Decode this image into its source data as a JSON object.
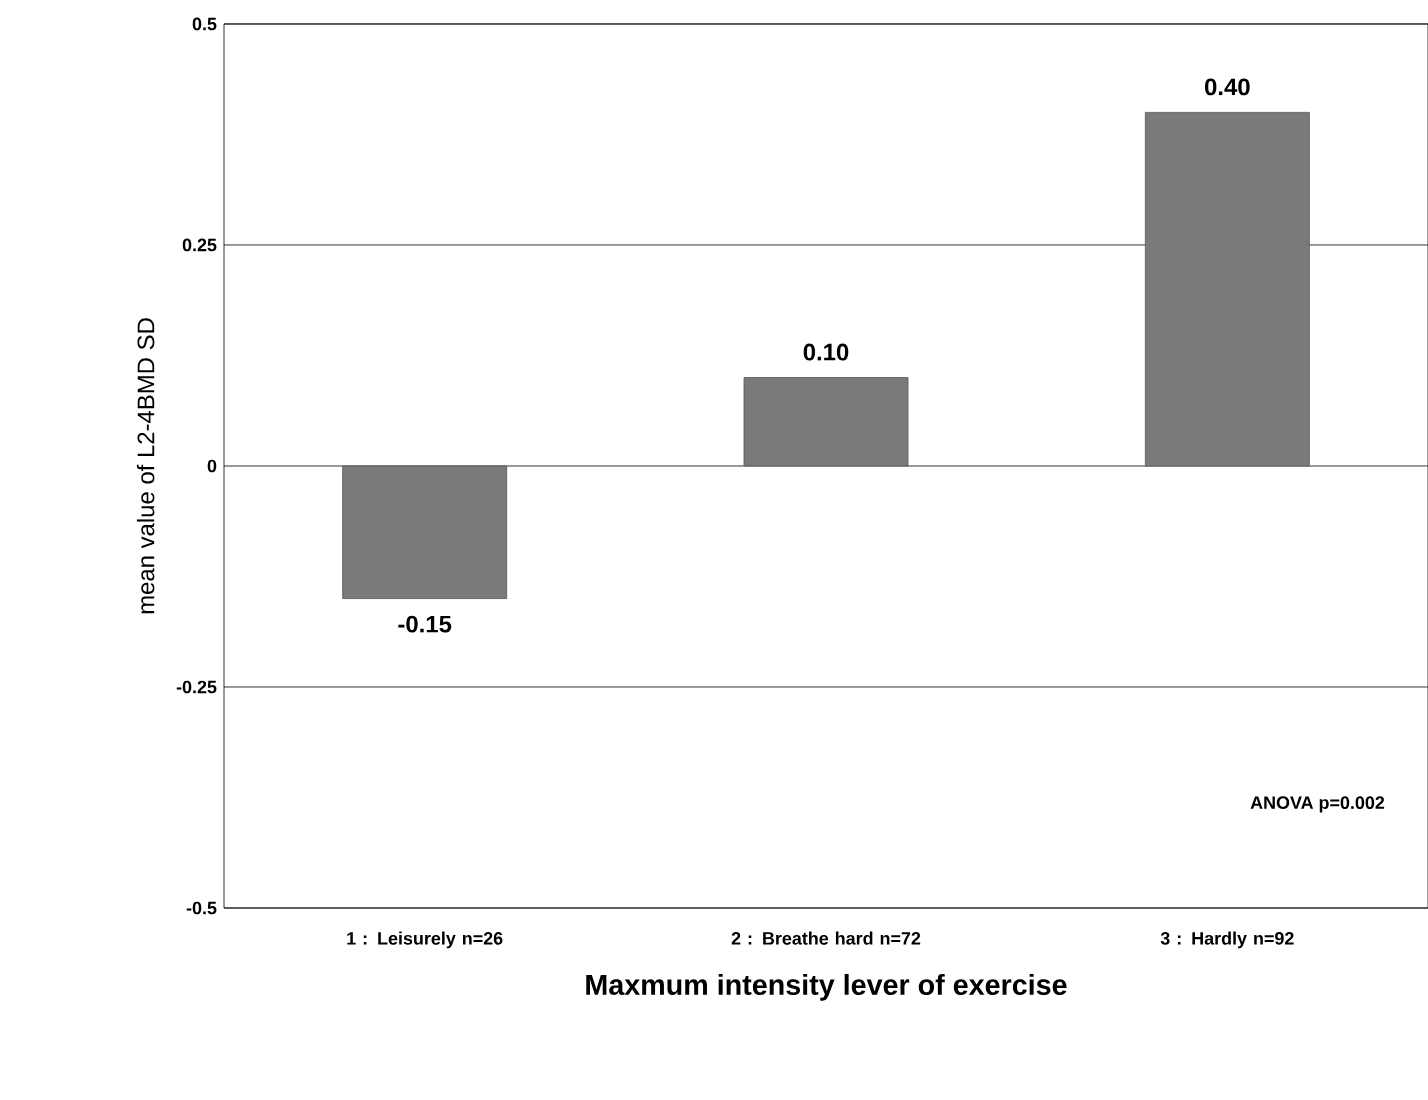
{
  "chart_data": {
    "type": "bar",
    "xlabel": "Maxmum intensity lever of exercise",
    "ylabel": "mean value of L2-4BMD SD",
    "categories": [
      "1 : Leisurely n=26",
      "2 : Breathe hard n=72",
      "3 : Hardly n=92"
    ],
    "values": [
      -0.15,
      0.1,
      0.4
    ],
    "value_labels": [
      "-0.15",
      "0.10",
      "0.40"
    ],
    "color": "#7a7a7a",
    "ylim": [
      -0.5,
      0.5
    ],
    "yticks": [
      {
        "value": -0.5,
        "label": "-0.5"
      },
      {
        "value": -0.25,
        "label": "-0.25"
      },
      {
        "value": 0,
        "label": "0"
      },
      {
        "value": 0.25,
        "label": "0.25"
      },
      {
        "value": 0.5,
        "label": "0.5"
      }
    ],
    "grid": "y",
    "annotations": [
      "ANOVA p=0.002"
    ]
  }
}
